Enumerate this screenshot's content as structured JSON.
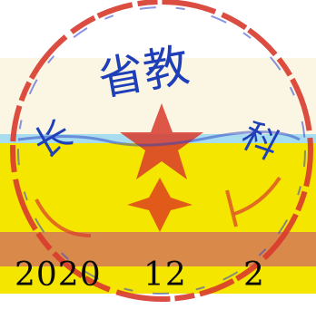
{
  "seal": {
    "text": "省教",
    "text_right": "科",
    "text_left": "长",
    "ring_color": "#d83a2c",
    "ink_color": "#1f3fb8"
  },
  "colors": {
    "cream": "#fbf6e4",
    "cyan": "#a8dcef",
    "yellow": "#f5e600",
    "orange": "#d98a4a"
  },
  "date": {
    "year": "2020",
    "month": "12",
    "day": "2"
  }
}
